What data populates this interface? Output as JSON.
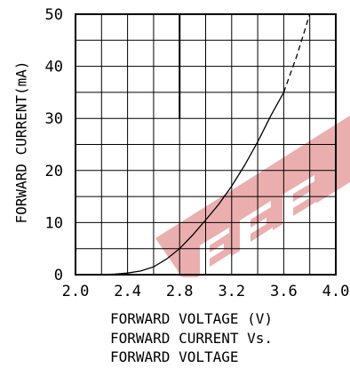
{
  "chart_data": {
    "type": "line",
    "title": "FORWARD CURRENT Vs. FORWARD VOLTAGE",
    "title_lines": [
      "FORWARD CURRENT Vs.",
      "FORWARD VOLTAGE"
    ],
    "xlabel": "FORWARD VOLTAGE (V)",
    "ylabel": "FORWARD CURRENT(mA)",
    "xlim": [
      2.0,
      4.0
    ],
    "ylim": [
      0,
      50
    ],
    "x_ticks": [
      "2.0",
      "2.4",
      "2.8",
      "3.2",
      "3.6",
      "4.0"
    ],
    "y_ticks": [
      "0",
      "10",
      "20",
      "30",
      "40",
      "50"
    ],
    "grid": true,
    "series": [
      {
        "style": "solid",
        "x": [
          2.2,
          2.3,
          2.4,
          2.5,
          2.6,
          2.7,
          2.8,
          2.9,
          3.0,
          3.1,
          3.2,
          3.3,
          3.4,
          3.5,
          3.6
        ],
        "y": [
          0,
          0.1,
          0.3,
          0.7,
          1.5,
          3.0,
          5.0,
          7.6,
          10.5,
          13.5,
          17.0,
          21.0,
          25.5,
          30.5,
          35.0
        ]
      },
      {
        "style": "dashed",
        "x": [
          3.6,
          3.7,
          3.8
        ],
        "y": [
          35.0,
          42.0,
          50.0
        ]
      }
    ]
  },
  "watermark": {
    "color": "#e8a0a0"
  }
}
